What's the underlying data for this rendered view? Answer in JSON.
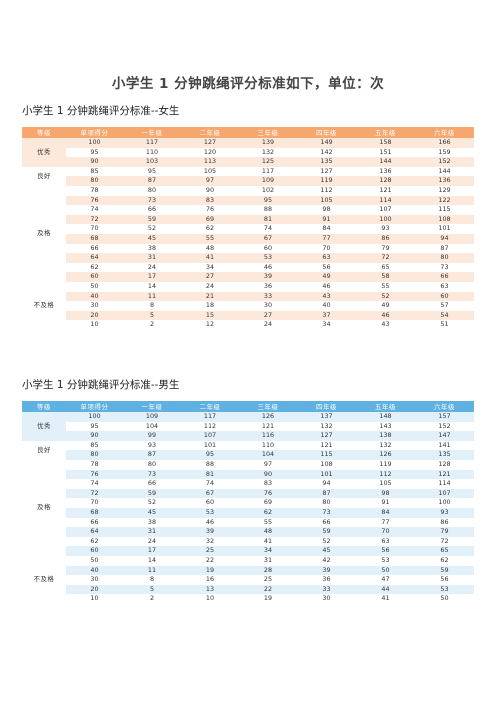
{
  "page_title": "小学生 1 分钟跳绳评分标准如下，单位：次",
  "girls": {
    "title": "小学生 1 分钟跳绳评分标准--女生",
    "headers": [
      "等级",
      "单项得分",
      "一年级",
      "二年级",
      "三年级",
      "四年级",
      "五年级",
      "六年级"
    ],
    "levels": [
      {
        "name": "优秀",
        "span": 3
      },
      {
        "name": "良好",
        "span": 2
      },
      {
        "name": "及格",
        "span": 10
      },
      {
        "name": "不及格",
        "span": 5
      }
    ],
    "rows": [
      [
        "100",
        "117",
        "127",
        "139",
        "149",
        "158",
        "166"
      ],
      [
        "95",
        "110",
        "120",
        "132",
        "142",
        "151",
        "159"
      ],
      [
        "90",
        "103",
        "113",
        "125",
        "135",
        "144",
        "152"
      ],
      [
        "85",
        "95",
        "105",
        "117",
        "127",
        "136",
        "144"
      ],
      [
        "80",
        "87",
        "97",
        "109",
        "119",
        "128",
        "136"
      ],
      [
        "78",
        "80",
        "90",
        "102",
        "112",
        "121",
        "129"
      ],
      [
        "76",
        "73",
        "83",
        "95",
        "105",
        "114",
        "122"
      ],
      [
        "74",
        "66",
        "76",
        "88",
        "98",
        "107",
        "115"
      ],
      [
        "72",
        "59",
        "69",
        "81",
        "91",
        "100",
        "108"
      ],
      [
        "70",
        "52",
        "62",
        "74",
        "84",
        "93",
        "101"
      ],
      [
        "68",
        "45",
        "55",
        "67",
        "77",
        "86",
        "94"
      ],
      [
        "66",
        "38",
        "48",
        "60",
        "70",
        "79",
        "87"
      ],
      [
        "64",
        "31",
        "41",
        "53",
        "63",
        "72",
        "80"
      ],
      [
        "62",
        "24",
        "34",
        "46",
        "56",
        "65",
        "73"
      ],
      [
        "60",
        "17",
        "27",
        "39",
        "49",
        "58",
        "66"
      ],
      [
        "50",
        "14",
        "24",
        "36",
        "46",
        "55",
        "63"
      ],
      [
        "40",
        "11",
        "21",
        "33",
        "43",
        "52",
        "60"
      ],
      [
        "30",
        "8",
        "18",
        "30",
        "40",
        "49",
        "57"
      ],
      [
        "20",
        "5",
        "15",
        "27",
        "37",
        "46",
        "54"
      ],
      [
        "10",
        "2",
        "12",
        "24",
        "34",
        "43",
        "51"
      ]
    ]
  },
  "boys": {
    "title": "小学生 1 分钟跳绳评分标准--男生",
    "headers": [
      "等级",
      "单项得分",
      "一年级",
      "二年级",
      "三年级",
      "四年级",
      "五年级",
      "六年级"
    ],
    "levels": [
      {
        "name": "优秀",
        "span": 3
      },
      {
        "name": "良好",
        "span": 2
      },
      {
        "name": "及格",
        "span": 10
      },
      {
        "name": "不及格",
        "span": 5
      }
    ],
    "rows": [
      [
        "100",
        "109",
        "117",
        "126",
        "137",
        "148",
        "157"
      ],
      [
        "95",
        "104",
        "112",
        "121",
        "132",
        "143",
        "152"
      ],
      [
        "90",
        "99",
        "107",
        "116",
        "127",
        "138",
        "147"
      ],
      [
        "85",
        "93",
        "101",
        "110",
        "121",
        "132",
        "141"
      ],
      [
        "80",
        "87",
        "95",
        "104",
        "115",
        "126",
        "135"
      ],
      [
        "78",
        "80",
        "88",
        "97",
        "108",
        "119",
        "128"
      ],
      [
        "76",
        "73",
        "81",
        "90",
        "101",
        "112",
        "121"
      ],
      [
        "74",
        "66",
        "74",
        "83",
        "94",
        "105",
        "114"
      ],
      [
        "72",
        "59",
        "67",
        "76",
        "87",
        "98",
        "107"
      ],
      [
        "70",
        "52",
        "60",
        "69",
        "80",
        "91",
        "100"
      ],
      [
        "68",
        "45",
        "53",
        "62",
        "73",
        "84",
        "93"
      ],
      [
        "66",
        "38",
        "46",
        "55",
        "66",
        "77",
        "86"
      ],
      [
        "64",
        "31",
        "39",
        "48",
        "59",
        "70",
        "79"
      ],
      [
        "62",
        "24",
        "32",
        "41",
        "52",
        "63",
        "72"
      ],
      [
        "60",
        "17",
        "25",
        "34",
        "45",
        "56",
        "65"
      ],
      [
        "50",
        "14",
        "22",
        "31",
        "42",
        "53",
        "62"
      ],
      [
        "40",
        "11",
        "19",
        "28",
        "39",
        "50",
        "59"
      ],
      [
        "30",
        "8",
        "16",
        "25",
        "36",
        "47",
        "56"
      ],
      [
        "20",
        "5",
        "13",
        "22",
        "33",
        "44",
        "53"
      ],
      [
        "10",
        "2",
        "10",
        "19",
        "30",
        "41",
        "50"
      ]
    ]
  },
  "colors": {
    "girls_header": "#f6a76e",
    "girls_stripe": "#fde9dc",
    "boys_header": "#5fb1e2",
    "boys_stripe": "#e2f0fa"
  }
}
